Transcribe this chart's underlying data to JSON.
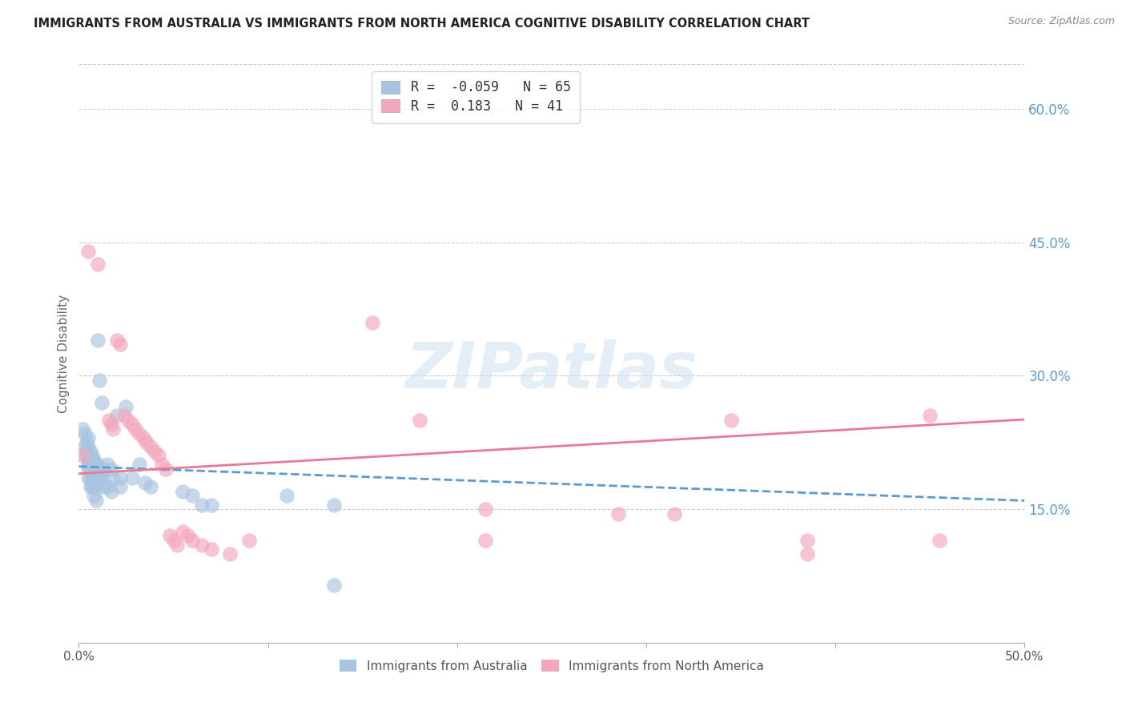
{
  "title": "IMMIGRANTS FROM AUSTRALIA VS IMMIGRANTS FROM NORTH AMERICA COGNITIVE DISABILITY CORRELATION CHART",
  "source": "Source: ZipAtlas.com",
  "ylabel": "Cognitive Disability",
  "xlim": [
    0.0,
    0.5
  ],
  "ylim": [
    0.0,
    0.65
  ],
  "xtick_positions": [
    0.0,
    0.1,
    0.2,
    0.3,
    0.4,
    0.5
  ],
  "xtick_labels": [
    "0.0%",
    "",
    "",
    "",
    "",
    "50.0%"
  ],
  "ytick_positions_right": [
    0.6,
    0.45,
    0.3,
    0.15
  ],
  "ytick_labels_right": [
    "60.0%",
    "45.0%",
    "30.0%",
    "15.0%"
  ],
  "grid_color": "#cccccc",
  "background_color": "#ffffff",
  "australia_color": "#a8c4e0",
  "north_america_color": "#f4a7b9",
  "australia_line_color": "#5b9bd5",
  "north_america_line_color": "#e87a96",
  "australia_R": -0.059,
  "australia_N": 65,
  "north_america_R": 0.183,
  "north_america_N": 41,
  "watermark": "ZIPatlas",
  "australia_scatter": [
    [
      0.002,
      0.24
    ],
    [
      0.003,
      0.235
    ],
    [
      0.003,
      0.22
    ],
    [
      0.004,
      0.225
    ],
    [
      0.004,
      0.215
    ],
    [
      0.004,
      0.21
    ],
    [
      0.005,
      0.23
    ],
    [
      0.005,
      0.22
    ],
    [
      0.005,
      0.205
    ],
    [
      0.005,
      0.2
    ],
    [
      0.005,
      0.195
    ],
    [
      0.005,
      0.185
    ],
    [
      0.006,
      0.215
    ],
    [
      0.006,
      0.205
    ],
    [
      0.006,
      0.2
    ],
    [
      0.006,
      0.195
    ],
    [
      0.006,
      0.185
    ],
    [
      0.006,
      0.175
    ],
    [
      0.007,
      0.21
    ],
    [
      0.007,
      0.205
    ],
    [
      0.007,
      0.2
    ],
    [
      0.007,
      0.195
    ],
    [
      0.007,
      0.185
    ],
    [
      0.007,
      0.175
    ],
    [
      0.008,
      0.205
    ],
    [
      0.008,
      0.2
    ],
    [
      0.008,
      0.195
    ],
    [
      0.008,
      0.185
    ],
    [
      0.008,
      0.175
    ],
    [
      0.008,
      0.165
    ],
    [
      0.009,
      0.2
    ],
    [
      0.009,
      0.195
    ],
    [
      0.009,
      0.185
    ],
    [
      0.009,
      0.175
    ],
    [
      0.009,
      0.16
    ],
    [
      0.01,
      0.34
    ],
    [
      0.01,
      0.2
    ],
    [
      0.01,
      0.195
    ],
    [
      0.01,
      0.185
    ],
    [
      0.011,
      0.295
    ],
    [
      0.011,
      0.19
    ],
    [
      0.012,
      0.27
    ],
    [
      0.012,
      0.185
    ],
    [
      0.013,
      0.195
    ],
    [
      0.013,
      0.175
    ],
    [
      0.015,
      0.2
    ],
    [
      0.015,
      0.175
    ],
    [
      0.017,
      0.195
    ],
    [
      0.017,
      0.17
    ],
    [
      0.018,
      0.185
    ],
    [
      0.02,
      0.255
    ],
    [
      0.022,
      0.185
    ],
    [
      0.022,
      0.175
    ],
    [
      0.025,
      0.265
    ],
    [
      0.028,
      0.185
    ],
    [
      0.032,
      0.2
    ],
    [
      0.035,
      0.18
    ],
    [
      0.038,
      0.175
    ],
    [
      0.055,
      0.17
    ],
    [
      0.06,
      0.165
    ],
    [
      0.065,
      0.155
    ],
    [
      0.07,
      0.155
    ],
    [
      0.11,
      0.165
    ],
    [
      0.135,
      0.155
    ],
    [
      0.135,
      0.065
    ]
  ],
  "north_america_scatter": [
    [
      0.002,
      0.21
    ],
    [
      0.005,
      0.44
    ],
    [
      0.01,
      0.425
    ],
    [
      0.016,
      0.25
    ],
    [
      0.017,
      0.245
    ],
    [
      0.018,
      0.24
    ],
    [
      0.02,
      0.34
    ],
    [
      0.022,
      0.335
    ],
    [
      0.024,
      0.255
    ],
    [
      0.026,
      0.25
    ],
    [
      0.028,
      0.245
    ],
    [
      0.03,
      0.24
    ],
    [
      0.032,
      0.235
    ],
    [
      0.034,
      0.23
    ],
    [
      0.036,
      0.225
    ],
    [
      0.038,
      0.22
    ],
    [
      0.04,
      0.215
    ],
    [
      0.042,
      0.21
    ],
    [
      0.044,
      0.2
    ],
    [
      0.046,
      0.195
    ],
    [
      0.048,
      0.12
    ],
    [
      0.05,
      0.115
    ],
    [
      0.052,
      0.11
    ],
    [
      0.055,
      0.125
    ],
    [
      0.058,
      0.12
    ],
    [
      0.06,
      0.115
    ],
    [
      0.065,
      0.11
    ],
    [
      0.07,
      0.105
    ],
    [
      0.08,
      0.1
    ],
    [
      0.09,
      0.115
    ],
    [
      0.155,
      0.36
    ],
    [
      0.18,
      0.25
    ],
    [
      0.215,
      0.15
    ],
    [
      0.215,
      0.115
    ],
    [
      0.285,
      0.145
    ],
    [
      0.315,
      0.145
    ],
    [
      0.345,
      0.25
    ],
    [
      0.385,
      0.115
    ],
    [
      0.385,
      0.1
    ],
    [
      0.45,
      0.255
    ],
    [
      0.455,
      0.115
    ]
  ]
}
